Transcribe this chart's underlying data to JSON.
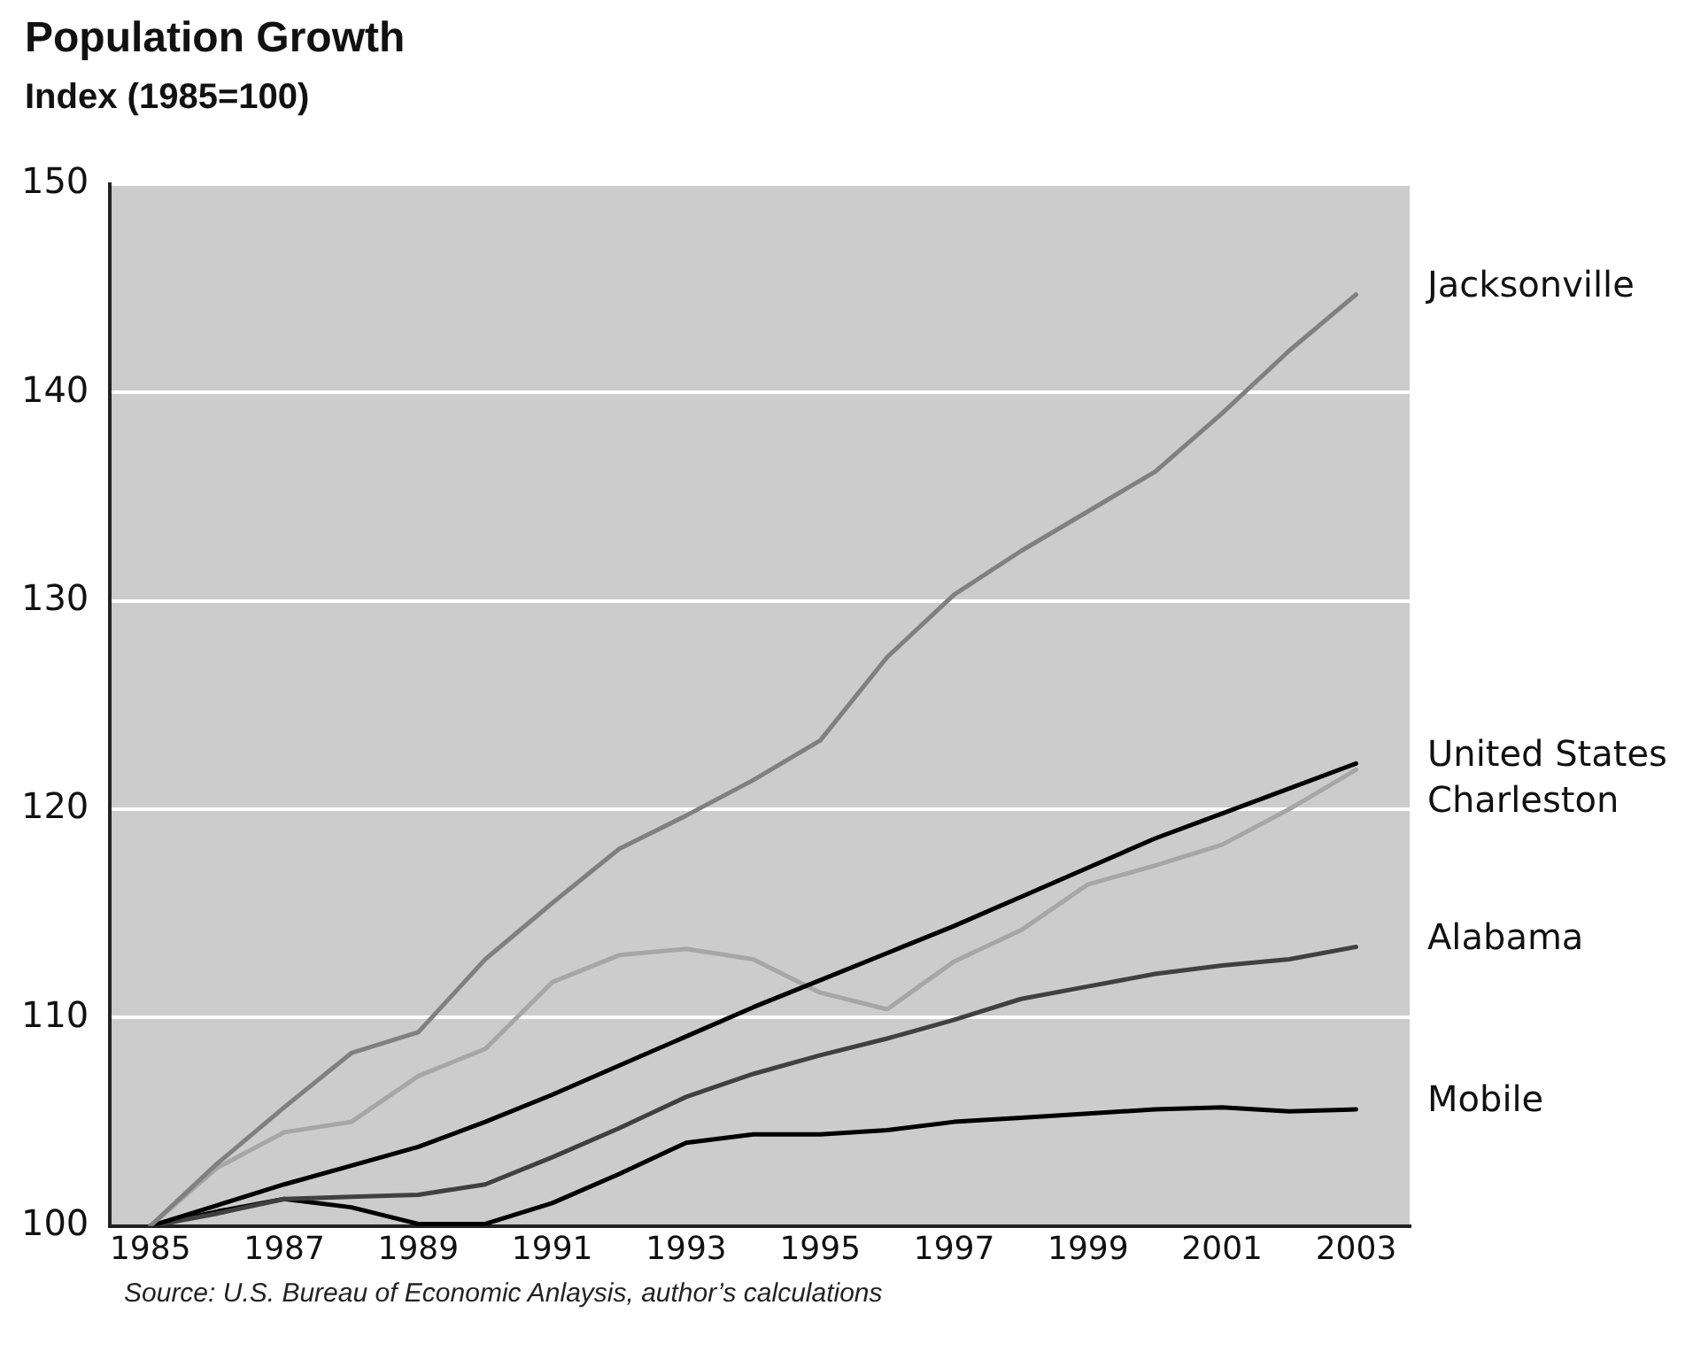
{
  "chart_data": {
    "type": "line",
    "title": "Population Growth",
    "subtitle": "Index (1985=100)",
    "x": [
      1985,
      1986,
      1987,
      1988,
      1989,
      1990,
      1991,
      1992,
      1993,
      1994,
      1995,
      1996,
      1997,
      1998,
      1999,
      2000,
      2001,
      2002,
      2003
    ],
    "series": [
      {
        "name": "Jacksonville",
        "color": "#808080",
        "values": [
          100,
          103,
          105.7,
          108.3,
          109.3,
          112.8,
          115.5,
          118.1,
          119.7,
          121.4,
          123.3,
          127.3,
          130.3,
          132.4,
          134.3,
          136.2,
          139,
          142,
          144.7
        ]
      },
      {
        "name": "United States",
        "color": "#000000",
        "values": [
          100,
          101,
          102,
          102.9,
          103.8,
          105,
          106.3,
          107.7,
          109.1,
          110.5,
          111.8,
          113.1,
          114.4,
          115.8,
          117.2,
          118.6,
          119.8,
          121,
          122.2
        ]
      },
      {
        "name": "Charleston",
        "color": "#a6a6a6",
        "values": [
          100,
          102.8,
          104.5,
          105,
          107.2,
          108.5,
          111.7,
          113,
          113.3,
          112.8,
          111.2,
          110.4,
          112.7,
          114.2,
          116.4,
          117.3,
          118.3,
          120,
          121.9
        ]
      },
      {
        "name": "Alabama",
        "color": "#404040",
        "values": [
          100,
          100.6,
          101.3,
          101.4,
          101.5,
          102,
          103.3,
          104.7,
          106.2,
          107.3,
          108.2,
          109,
          109.9,
          110.9,
          111.5,
          112.1,
          112.5,
          112.8,
          113.4
        ]
      },
      {
        "name": "Mobile",
        "color": "#000000",
        "values": [
          100,
          100.7,
          101.3,
          100.9,
          100.1,
          100.1,
          101.1,
          102.5,
          104,
          104.4,
          104.4,
          104.6,
          105,
          105.2,
          105.4,
          105.6,
          105.7,
          105.5,
          105.6
        ]
      }
    ],
    "xlim": [
      1984.4,
      2003.8
    ],
    "xticks": [
      1985,
      1987,
      1989,
      1991,
      1993,
      1995,
      1997,
      1999,
      2001,
      2003
    ],
    "ylim": [
      100,
      150
    ],
    "yticks": [
      100,
      110,
      120,
      130,
      140,
      150
    ],
    "grid": "y",
    "legend": false,
    "marker": "none",
    "line_style": "solid",
    "annotations": [
      "Source: U.S. Bureau of Economic Anlaysis, author’s calculations"
    ]
  }
}
